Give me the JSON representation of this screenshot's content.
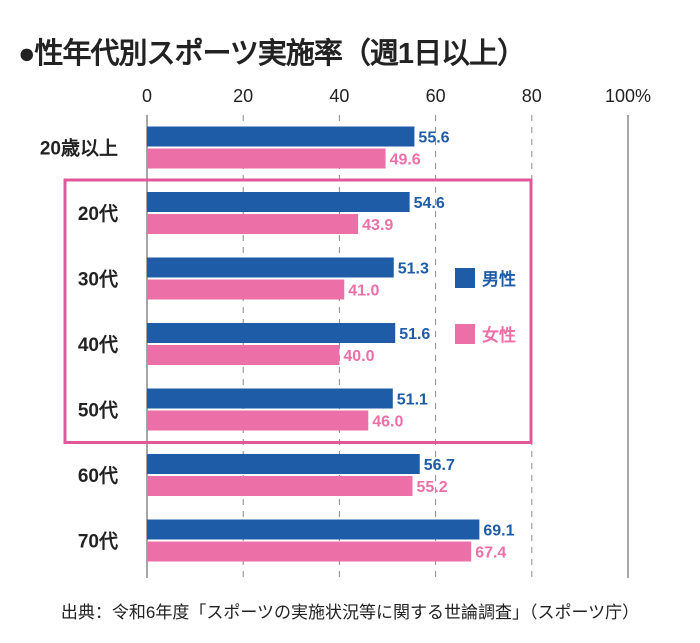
{
  "title": "●性年代別スポーツ実施率（週1日以上）",
  "source": "出典：令和6年度「スポーツの実施状況等に関する世論調査」（スポーツ庁）",
  "chart_data": {
    "type": "bar",
    "orientation": "horizontal",
    "title": "●性年代別スポーツ実施率（週1日以上）",
    "categories": [
      "20歳以上",
      "20代",
      "30代",
      "40代",
      "50代",
      "60代",
      "70代"
    ],
    "xlim": [
      0,
      100
    ],
    "ticks": [
      "0",
      "20",
      "40",
      "60",
      "80",
      "100%"
    ],
    "tick_values": [
      0,
      20,
      40,
      60,
      80,
      100
    ],
    "grid": "dashed vertical",
    "legend": "right-middle",
    "highlight": {
      "categories": [
        "20代",
        "30代",
        "40代",
        "50代"
      ],
      "color": "#e0589a"
    },
    "series": [
      {
        "name": "男性",
        "color": "#1f5ca8",
        "values": [
          55.6,
          54.6,
          51.3,
          51.6,
          51.1,
          56.7,
          69.1
        ],
        "labels": [
          "55.6",
          "54.6",
          "51.3",
          "51.6",
          "51.1",
          "56.7",
          "69.1"
        ]
      },
      {
        "name": "女性",
        "color": "#ec6fa8",
        "values": [
          49.6,
          43.9,
          41.0,
          40.0,
          46.0,
          55.2,
          67.4
        ],
        "labels": [
          "49.6",
          "43.9",
          "41.0",
          "40.0",
          "46.0",
          "55.2",
          "67.4"
        ]
      }
    ]
  }
}
